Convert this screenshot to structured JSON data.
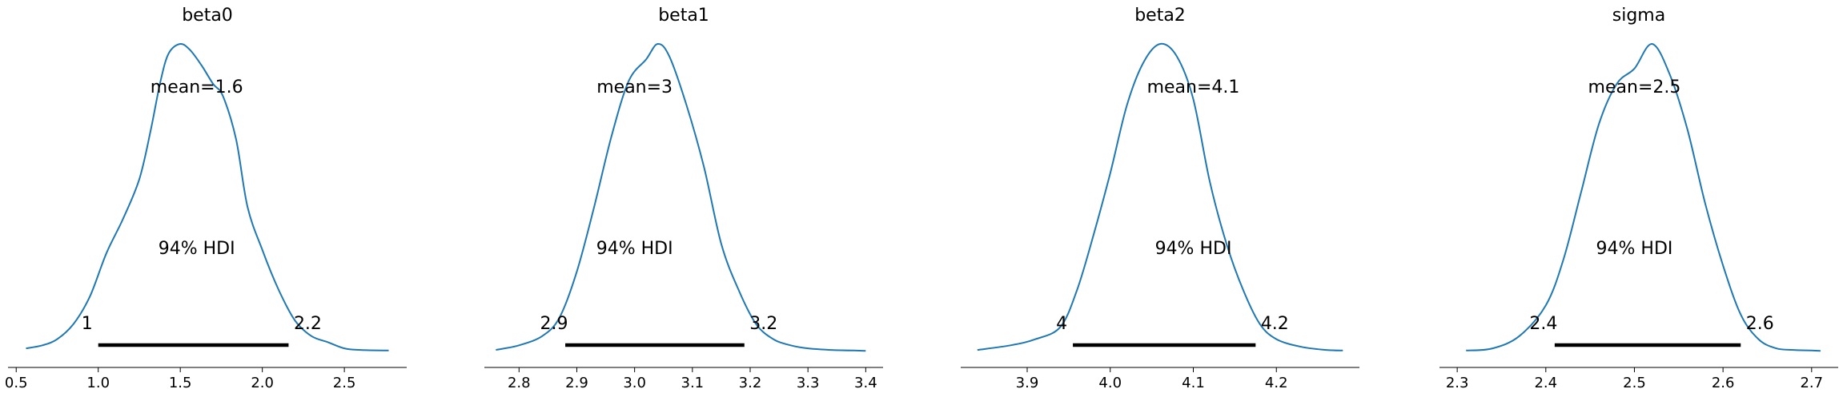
{
  "colors": {
    "line": "#1f77b4",
    "hdi": "#000000",
    "axis": "#000000",
    "background": "#ffffff"
  },
  "chart_data": [
    {
      "type": "area",
      "title": "beta0",
      "xlabel": "",
      "ylabel": "",
      "xlim": [
        0.45,
        2.88
      ],
      "xticks": [
        0.5,
        1.0,
        1.5,
        2.0,
        2.5
      ],
      "xtick_labels": [
        "0.5",
        "1.0",
        "1.5",
        "2.0",
        "2.5"
      ],
      "density": {
        "x": [
          0.56,
          0.66,
          0.75,
          0.85,
          0.95,
          1.05,
          1.15,
          1.25,
          1.32,
          1.38,
          1.43,
          1.5,
          1.56,
          1.63,
          1.7,
          1.76,
          1.84,
          1.91,
          2.0,
          2.1,
          2.2,
          2.3,
          2.4,
          2.5,
          2.6,
          2.77
        ],
        "y": [
          0.01,
          0.02,
          0.04,
          0.09,
          0.18,
          0.32,
          0.43,
          0.56,
          0.72,
          0.88,
          0.97,
          1.0,
          0.98,
          0.93,
          0.87,
          0.83,
          0.69,
          0.47,
          0.33,
          0.2,
          0.1,
          0.05,
          0.03,
          0.01,
          0.005,
          0.003
        ]
      },
      "mean": 1.6,
      "mean_label": "mean=1.6",
      "hdi_label": "94% HDI",
      "hdi": [
        1.0,
        2.16
      ],
      "hdi_low_label": "1",
      "hdi_high_label": "2.2"
    },
    {
      "type": "area",
      "title": "beta1",
      "xlabel": "",
      "ylabel": "",
      "xlim": [
        2.74,
        3.43
      ],
      "xticks": [
        2.8,
        2.9,
        3.0,
        3.1,
        3.2,
        3.3,
        3.4
      ],
      "xtick_labels": [
        "2.8",
        "2.9",
        "3.0",
        "3.1",
        "3.2",
        "3.3",
        "3.4"
      ],
      "density": {
        "x": [
          2.76,
          2.8,
          2.84,
          2.87,
          2.9,
          2.93,
          2.96,
          2.99,
          3.02,
          3.04,
          3.06,
          3.09,
          3.12,
          3.15,
          3.18,
          3.21,
          3.24,
          3.27,
          3.3,
          3.34,
          3.38,
          3.4
        ],
        "y": [
          0.005,
          0.02,
          0.05,
          0.11,
          0.26,
          0.47,
          0.7,
          0.88,
          0.95,
          1.0,
          0.96,
          0.8,
          0.6,
          0.35,
          0.2,
          0.09,
          0.04,
          0.02,
          0.01,
          0.005,
          0.003,
          0.002
        ]
      },
      "mean": 3.0,
      "mean_label": "mean=3",
      "hdi_label": "94% HDI",
      "hdi": [
        2.88,
        3.19
      ],
      "hdi_low_label": "2.9",
      "hdi_high_label": "3.2"
    },
    {
      "type": "area",
      "title": "beta2",
      "xlabel": "",
      "ylabel": "",
      "xlim": [
        3.82,
        4.3
      ],
      "xticks": [
        3.9,
        4.0,
        4.1,
        4.2
      ],
      "xtick_labels": [
        "3.9",
        "4.0",
        "4.1",
        "4.2"
      ],
      "density": {
        "x": [
          3.84,
          3.88,
          3.91,
          3.94,
          3.96,
          3.98,
          4.0,
          4.02,
          4.04,
          4.06,
          4.08,
          4.1,
          4.12,
          4.14,
          4.16,
          4.18,
          4.2,
          4.23,
          4.26,
          4.28
        ],
        "y": [
          0.005,
          0.02,
          0.04,
          0.08,
          0.2,
          0.38,
          0.58,
          0.8,
          0.94,
          1.0,
          0.96,
          0.82,
          0.55,
          0.35,
          0.2,
          0.09,
          0.04,
          0.015,
          0.005,
          0.003
        ]
      },
      "mean": 4.1,
      "mean_label": "mean=4.1",
      "hdi_label": "94% HDI",
      "hdi": [
        3.955,
        4.175
      ],
      "hdi_low_label": "4",
      "hdi_high_label": "4.2"
    },
    {
      "type": "area",
      "title": "sigma",
      "xlabel": "",
      "ylabel": "",
      "xlim": [
        2.28,
        2.73
      ],
      "xticks": [
        2.3,
        2.4,
        2.5,
        2.6,
        2.7
      ],
      "xtick_labels": [
        "2.3",
        "2.4",
        "2.5",
        "2.6",
        "2.7"
      ],
      "density": {
        "x": [
          2.31,
          2.34,
          2.37,
          2.4,
          2.42,
          2.44,
          2.46,
          2.48,
          2.5,
          2.52,
          2.54,
          2.56,
          2.58,
          2.6,
          2.62,
          2.64,
          2.66,
          2.68,
          2.7,
          2.71
        ],
        "y": [
          0.003,
          0.01,
          0.05,
          0.15,
          0.3,
          0.52,
          0.74,
          0.87,
          0.92,
          1.0,
          0.9,
          0.72,
          0.48,
          0.28,
          0.12,
          0.04,
          0.01,
          0.005,
          0.003,
          0.002
        ]
      },
      "mean": 2.5,
      "mean_label": "mean=2.5",
      "hdi_label": "94% HDI",
      "hdi": [
        2.41,
        2.62
      ],
      "hdi_low_label": "2.4",
      "hdi_high_label": "2.6"
    }
  ]
}
